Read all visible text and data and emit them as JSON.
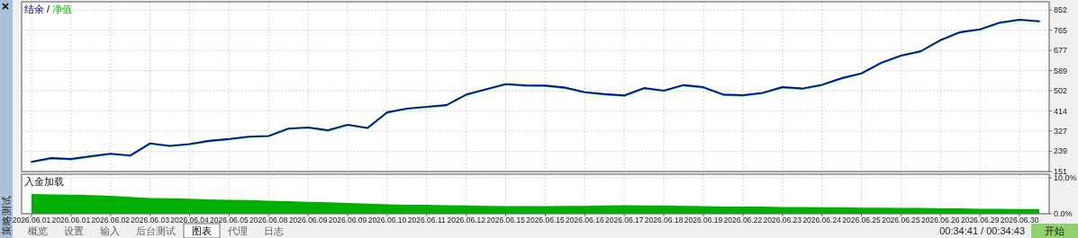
{
  "chart_data": [
    {
      "type": "line",
      "legend": "top left",
      "grid": true,
      "tick_labels": "y",
      "ylim": [
        151,
        888
      ],
      "yticks": [
        151,
        239,
        327,
        414,
        502,
        589,
        677,
        765,
        852
      ],
      "categories": [
        "2026.06.01",
        null,
        "2026.06.01",
        null,
        "2026.06.02",
        null,
        "2026.06.03",
        null,
        "2026.06.04",
        null,
        "2026.06.05",
        null,
        "2026.06.08",
        null,
        "2026.06.09",
        null,
        "2026.06.09",
        null,
        "2026.06.10",
        null,
        "2026.06.11",
        null,
        "2026.06.12",
        null,
        "2026.06.15",
        null,
        "2026.06.15",
        null,
        "2026.06.16",
        null,
        "2026.06.17",
        null,
        "2026.06.18",
        null,
        "2026.06.19",
        null,
        "2026.06.22",
        null,
        "2026.06.23",
        null,
        "2026.06.24",
        null,
        "2026.06.25",
        null,
        "2026.06.25",
        null,
        "2026.06.26",
        null,
        "2026.06.29",
        null,
        "2026.06.30",
        null
      ],
      "annotations": [
        "/"
      ],
      "series": [
        {
          "name": "净值",
          "color": "#00c000",
          "values": [
            191,
            207,
            203,
            215,
            226,
            218,
            271,
            260,
            268,
            282,
            290,
            300,
            303,
            335,
            340,
            328,
            352,
            338,
            406,
            422,
            430,
            437,
            483,
            506,
            528,
            523,
            522,
            513,
            493,
            485,
            479,
            511,
            500,
            524,
            515,
            483,
            480,
            490,
            515,
            509,
            525,
            554,
            575,
            621,
            652,
            671,
            719,
            754,
            766,
            795,
            808,
            801
          ]
        },
        {
          "name": "结余",
          "color": "#0000b4",
          "values": [
            194,
            210,
            206,
            218,
            229,
            221,
            274,
            263,
            271,
            285,
            293,
            303,
            306,
            338,
            343,
            331,
            355,
            341,
            409,
            425,
            433,
            440,
            486,
            509,
            531,
            526,
            525,
            516,
            496,
            488,
            482,
            514,
            503,
            527,
            518,
            486,
            483,
            493,
            518,
            512,
            528,
            557,
            578,
            624,
            655,
            674,
            722,
            757,
            769,
            798,
            811,
            804
          ]
        }
      ]
    },
    {
      "type": "area",
      "title": "入金加载",
      "grid": true,
      "ylim": [
        0,
        11
      ],
      "yticks": [
        {
          "value": 0,
          "label": "0.0%"
        },
        {
          "value": 10,
          "label": "10.0%"
        }
      ],
      "categories": [
        "2026.06.01",
        null,
        "2026.06.01",
        null,
        "2026.06.02",
        null,
        "2026.06.03",
        null,
        "2026.06.04",
        null,
        "2026.06.05",
        null,
        "2026.06.08",
        null,
        "2026.06.09",
        null,
        "2026.06.09",
        null,
        "2026.06.10",
        null,
        "2026.06.11",
        null,
        "2026.06.12",
        null,
        "2026.06.15",
        null,
        "2026.06.15",
        null,
        "2026.06.16",
        null,
        "2026.06.17",
        null,
        "2026.06.18",
        null,
        "2026.06.19",
        null,
        "2026.06.22",
        null,
        "2026.06.23",
        null,
        "2026.06.24",
        null,
        "2026.06.25",
        null,
        "2026.06.25",
        null,
        "2026.06.26",
        null,
        "2026.06.29",
        null,
        "2026.06.30",
        null
      ],
      "series": [
        {
          "color": "#00b000",
          "values": [
            5.5,
            5.4,
            5.3,
            5.2,
            5.0,
            4.7,
            4.4,
            4.3,
            4.2,
            4.0,
            3.9,
            3.8,
            3.6,
            3.5,
            3.3,
            3.2,
            3.0,
            2.8,
            2.6,
            2.5,
            2.5,
            2.4,
            2.3,
            2.2,
            2.1,
            2.1,
            2.1,
            2.2,
            2.2,
            2.3,
            2.4,
            2.3,
            2.3,
            2.2,
            2.1,
            2.0,
            2.0,
            2.0,
            1.9,
            1.9,
            1.8,
            1.8,
            1.7,
            1.7,
            1.6,
            1.6,
            1.5,
            1.5,
            1.4,
            1.4,
            1.3,
            1.3
          ]
        }
      ],
      "annotations": [
        "概览",
        "设置",
        "输入",
        "后台测试",
        "图表",
        "代理",
        "日志",
        "00:34:41 / 00:34:43",
        "开始",
        "策略测试"
      ]
    }
  ]
}
